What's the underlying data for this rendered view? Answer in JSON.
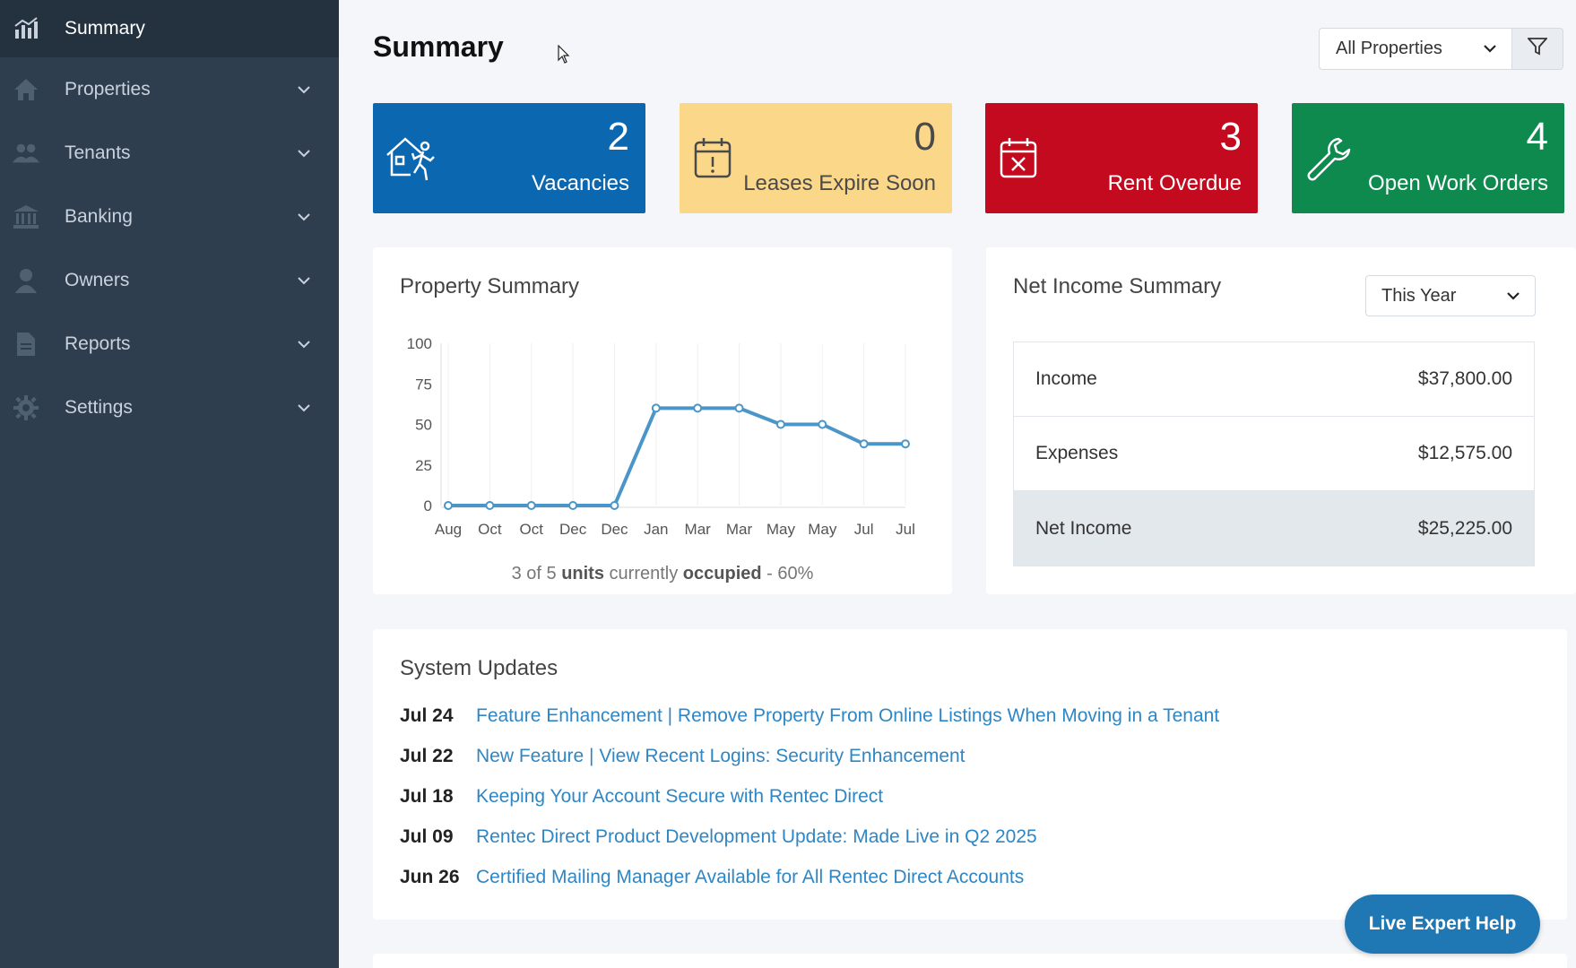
{
  "sidebar": {
    "items": [
      {
        "label": "Summary",
        "icon": "chart-icon",
        "active": true
      },
      {
        "label": "Properties",
        "icon": "home-icon"
      },
      {
        "label": "Tenants",
        "icon": "users-icon"
      },
      {
        "label": "Banking",
        "icon": "bank-icon"
      },
      {
        "label": "Owners",
        "icon": "user-icon"
      },
      {
        "label": "Reports",
        "icon": "document-icon"
      },
      {
        "label": "Settings",
        "icon": "gear-icon"
      }
    ]
  },
  "header": {
    "title": "Summary",
    "property_filter": "All Properties"
  },
  "cards": [
    {
      "count": "2",
      "label": "Vacancies",
      "icon": "house-person-icon",
      "color": "#0b67b0"
    },
    {
      "count": "0",
      "label": "Leases Expire Soon",
      "icon": "calendar-alert-icon",
      "color": "#fbd78a"
    },
    {
      "count": "3",
      "label": "Rent Overdue",
      "icon": "calendar-x-icon",
      "color": "#c40a1e"
    },
    {
      "count": "4",
      "label": "Open Work Orders",
      "icon": "wrench-icon",
      "color": "#0e8a4f"
    }
  ],
  "property_summary": {
    "title": "Property Summary",
    "occupancy": {
      "occupied_units": "3",
      "total_units": "5",
      "percent": "60%",
      "text_of": "of",
      "text_units": "units",
      "text_currently": "currently",
      "text_occupied": "occupied",
      "text_dash": "-"
    }
  },
  "chart_data": {
    "type": "line",
    "categories": [
      "Aug",
      "Oct",
      "Oct",
      "Dec",
      "Dec",
      "Jan",
      "Mar",
      "Mar",
      "May",
      "May",
      "Jul",
      "Jul"
    ],
    "values": [
      0,
      0,
      0,
      0,
      0,
      60,
      60,
      60,
      50,
      50,
      38,
      38
    ],
    "yticks": [
      0,
      25,
      50,
      75,
      100
    ],
    "ylim": [
      0,
      100
    ],
    "grid": true,
    "color": "#4a96c9"
  },
  "net_income": {
    "title": "Net Income Summary",
    "period": "This Year",
    "rows": [
      {
        "label": "Income",
        "amount": "$37,800.00"
      },
      {
        "label": "Expenses",
        "amount": "$12,575.00"
      },
      {
        "label": "Net Income",
        "amount": "$25,225.00"
      }
    ]
  },
  "system_updates": {
    "title": "System Updates",
    "items": [
      {
        "date": "Jul 24",
        "text": "Feature Enhancement | Remove Property From Online Listings When Moving in a Tenant"
      },
      {
        "date": "Jul 22",
        "text": "New Feature | View Recent Logins: Security Enhancement"
      },
      {
        "date": "Jul 18",
        "text": "Keeping Your Account Secure with Rentec Direct"
      },
      {
        "date": "Jul 09",
        "text": "Rentec Direct Product Development Update: Made Live in Q2 2025"
      },
      {
        "date": "Jun 26",
        "text": "Certified Mailing Manager Available for All Rentec Direct Accounts"
      }
    ]
  },
  "help_button": "Live Expert Help"
}
